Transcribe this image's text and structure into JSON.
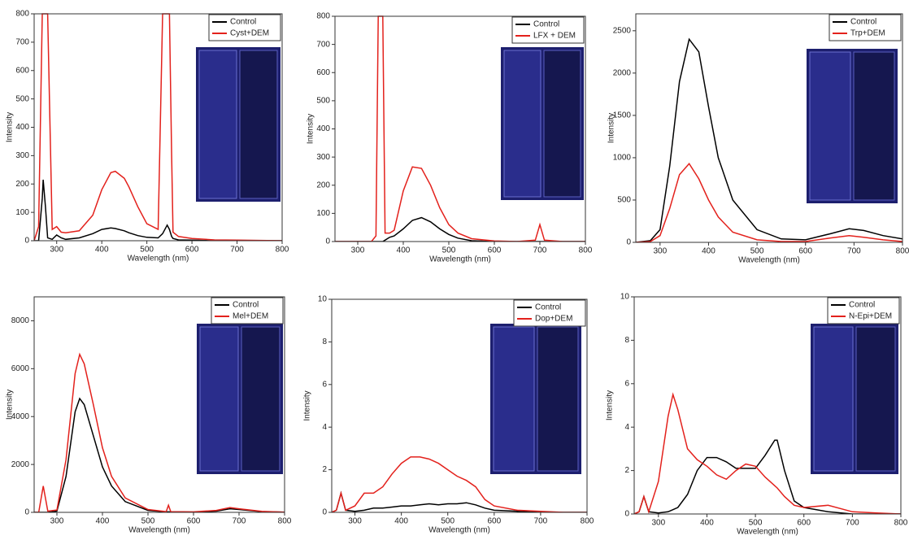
{
  "chart_data": [
    {
      "type": "line",
      "x_label": "Wavelength (nm)",
      "y_label": "Intensity",
      "x": [
        250,
        260,
        268,
        270,
        275,
        280,
        290,
        300,
        310,
        320,
        350,
        380,
        400,
        420,
        430,
        450,
        460,
        480,
        500,
        525,
        535,
        545,
        550,
        555,
        558,
        570,
        600,
        650,
        700,
        800
      ],
      "series": [
        {
          "name": "Control",
          "color": "#000000",
          "values": [
            0,
            0,
            150,
            215,
            120,
            10,
            5,
            20,
            10,
            5,
            10,
            25,
            40,
            45,
            43,
            35,
            28,
            18,
            12,
            10,
            25,
            55,
            40,
            15,
            8,
            3,
            2,
            0,
            0,
            0
          ]
        },
        {
          "name": "Cyst+DEM",
          "color": "#e3211c",
          "values": [
            0,
            50,
            800,
            800,
            800,
            800,
            40,
            50,
            30,
            28,
            35,
            90,
            180,
            240,
            245,
            220,
            190,
            120,
            60,
            40,
            800,
            800,
            800,
            300,
            30,
            15,
            8,
            3,
            2,
            0
          ]
        }
      ],
      "xlim": [
        250,
        800
      ],
      "xticks": [
        300,
        400,
        500,
        600,
        700,
        800
      ],
      "ylim": [
        0,
        800
      ],
      "yticks": [
        0,
        100,
        200,
        300,
        400,
        500,
        600,
        700,
        800
      ]
    },
    {
      "type": "line",
      "x_label": "Wavelength (nm)",
      "y_label": "Intensity",
      "x": [
        250,
        330,
        340,
        345,
        350,
        355,
        360,
        370,
        380,
        400,
        420,
        440,
        460,
        480,
        500,
        520,
        550,
        600,
        650,
        690,
        700,
        710,
        750,
        800
      ],
      "series": [
        {
          "name": "Control",
          "color": "#000000",
          "values": [
            0,
            0,
            0,
            0,
            0,
            0,
            5,
            15,
            20,
            45,
            75,
            85,
            70,
            45,
            25,
            12,
            3,
            0,
            0,
            0,
            0,
            0,
            0,
            0
          ]
        },
        {
          "name": "LFX + DEM",
          "color": "#e3211c",
          "values": [
            0,
            0,
            20,
            800,
            800,
            800,
            30,
            30,
            40,
            180,
            265,
            260,
            200,
            120,
            60,
            30,
            10,
            2,
            0,
            5,
            60,
            5,
            0,
            0
          ]
        }
      ],
      "xlim": [
        250,
        800
      ],
      "xticks": [
        300,
        400,
        500,
        600,
        700,
        800
      ],
      "ylim": [
        0,
        800
      ],
      "yticks": [
        0,
        100,
        200,
        300,
        400,
        500,
        600,
        700,
        800
      ]
    },
    {
      "type": "line",
      "x_label": "Wavelength (nm)",
      "y_label": "Intensity",
      "x": [
        250,
        280,
        300,
        320,
        340,
        360,
        380,
        400,
        420,
        450,
        500,
        550,
        600,
        650,
        690,
        720,
        760,
        800
      ],
      "series": [
        {
          "name": "Control",
          "color": "#000000",
          "values": [
            0,
            20,
            150,
            900,
            1900,
            2400,
            2250,
            1600,
            1000,
            500,
            150,
            40,
            30,
            100,
            160,
            140,
            80,
            40
          ]
        },
        {
          "name": "Trp+DEM",
          "color": "#e3211c",
          "values": [
            0,
            10,
            80,
            400,
            800,
            930,
            750,
            500,
            300,
            120,
            30,
            10,
            10,
            50,
            80,
            60,
            30,
            10
          ]
        }
      ],
      "xlim": [
        250,
        800
      ],
      "xticks": [
        300,
        400,
        500,
        600,
        700,
        800
      ],
      "ylim": [
        0,
        2700
      ],
      "yticks": [
        0,
        500,
        1000,
        1500,
        2000,
        2500
      ]
    },
    {
      "type": "line",
      "x_label": "Wavelength (nm)",
      "y_label": "Intensity",
      "x": [
        250,
        260,
        270,
        280,
        300,
        320,
        340,
        350,
        360,
        380,
        400,
        420,
        450,
        500,
        540,
        545,
        550,
        600,
        650,
        680,
        700,
        750,
        800
      ],
      "series": [
        {
          "name": "Control",
          "color": "#000000",
          "values": [
            0,
            0,
            0,
            0,
            50,
            1500,
            4200,
            4750,
            4500,
            3200,
            1900,
            1100,
            450,
            80,
            20,
            20,
            20,
            10,
            50,
            150,
            120,
            30,
            10
          ]
        },
        {
          "name": "Mel+DEM",
          "color": "#e3211c",
          "values": [
            0,
            0,
            1100,
            50,
            100,
            2200,
            5800,
            6600,
            6200,
            4500,
            2700,
            1500,
            600,
            120,
            30,
            300,
            30,
            20,
            80,
            200,
            150,
            40,
            10
          ]
        }
      ],
      "xlim": [
        250,
        800
      ],
      "xticks": [
        300,
        400,
        500,
        600,
        700,
        800
      ],
      "ylim": [
        0,
        9000
      ],
      "yticks": [
        0,
        2000,
        4000,
        6000,
        8000
      ]
    },
    {
      "type": "line",
      "x_label": "Wavelength (nm)",
      "y_label": "Intensity",
      "x": [
        250,
        260,
        270,
        280,
        300,
        320,
        340,
        360,
        380,
        400,
        420,
        440,
        460,
        480,
        500,
        520,
        540,
        560,
        580,
        600,
        650,
        700,
        750,
        800
      ],
      "series": [
        {
          "name": "Control",
          "color": "#000000",
          "values": [
            0,
            0.1,
            0.9,
            0.1,
            0.05,
            0.1,
            0.2,
            0.2,
            0.25,
            0.3,
            0.3,
            0.35,
            0.4,
            0.35,
            0.4,
            0.4,
            0.45,
            0.35,
            0.2,
            0.1,
            0.05,
            0,
            0,
            0
          ]
        },
        {
          "name": "Dop+DEM",
          "color": "#e3211c",
          "values": [
            0,
            0.1,
            0.9,
            0.1,
            0.3,
            0.9,
            0.9,
            1.2,
            1.8,
            2.3,
            2.6,
            2.6,
            2.5,
            2.3,
            2.0,
            1.7,
            1.5,
            1.2,
            0.6,
            0.3,
            0.1,
            0.05,
            0,
            0
          ]
        }
      ],
      "xlim": [
        250,
        800
      ],
      "xticks": [
        300,
        400,
        500,
        600,
        700,
        800
      ],
      "ylim": [
        0,
        10
      ],
      "yticks": [
        0,
        2,
        4,
        6,
        8,
        10
      ]
    },
    {
      "type": "line",
      "x_label": "Wavelength (nm)",
      "y_label": "Intensity",
      "x": [
        250,
        260,
        270,
        280,
        300,
        320,
        330,
        340,
        360,
        380,
        400,
        420,
        440,
        460,
        480,
        500,
        520,
        540,
        545,
        560,
        580,
        600,
        650,
        700,
        750,
        800
      ],
      "series": [
        {
          "name": "Control",
          "color": "#000000",
          "values": [
            0,
            0.1,
            0.8,
            0.1,
            0.05,
            0.1,
            0.2,
            0.3,
            0.9,
            2.0,
            2.6,
            2.6,
            2.4,
            2.1,
            2.1,
            2.1,
            2.7,
            3.4,
            3.4,
            2.0,
            0.6,
            0.3,
            0.1,
            0,
            0,
            0
          ]
        },
        {
          "name": "N-Epi+DEM",
          "color": "#e3211c",
          "values": [
            0,
            0.1,
            0.8,
            0.1,
            1.5,
            4.5,
            5.5,
            4.8,
            3.0,
            2.5,
            2.2,
            1.8,
            1.6,
            2.0,
            2.3,
            2.2,
            1.7,
            1.3,
            1.2,
            0.8,
            0.4,
            0.3,
            0.4,
            0.1,
            0.05,
            0
          ]
        }
      ],
      "xlim": [
        250,
        800
      ],
      "xticks": [
        300,
        400,
        500,
        600,
        700,
        800
      ],
      "ylim": [
        0,
        10
      ],
      "yticks": [
        0,
        2,
        4,
        6,
        8,
        10
      ]
    }
  ]
}
